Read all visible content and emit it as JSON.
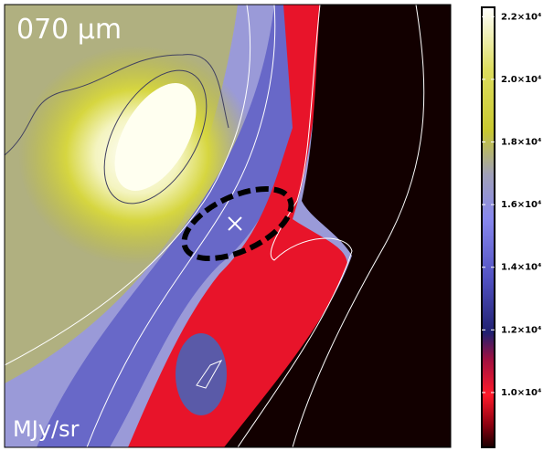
{
  "chart_data": {
    "type": "heatmap",
    "title": "070 μm",
    "unit_label": "MJy/sr",
    "colorbar": {
      "lim": [
        8250,
        22300
      ],
      "ticks": [
        {
          "value": 10000,
          "label": "1.0×10⁴"
        },
        {
          "value": 12000,
          "label": "1.2×10⁴"
        },
        {
          "value": 14000,
          "label": "1.4×10⁴"
        },
        {
          "value": 16000,
          "label": "1.6×10⁴"
        },
        {
          "value": 18000,
          "label": "1.8×10⁴"
        },
        {
          "value": 20000,
          "label": "2.0×10⁴"
        },
        {
          "value": 22000,
          "label": "2.2×10⁴"
        }
      ]
    }
  }
}
